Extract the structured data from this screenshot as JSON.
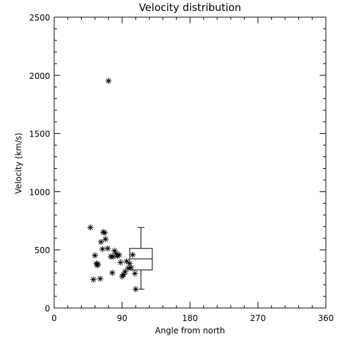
{
  "chart_data": {
    "type": "scatter",
    "title": "Velocity distribution",
    "xlabel": "Angle from north",
    "ylabel": "Velocity (km/s)",
    "xlim": [
      0,
      360
    ],
    "ylim": [
      0,
      2500
    ],
    "xticks": [
      0,
      90,
      180,
      270,
      360
    ],
    "xtick_labels": [
      "0",
      "90",
      "180",
      "270",
      "360"
    ],
    "yticks": [
      0,
      500,
      1000,
      1500,
      2000,
      2500
    ],
    "ytick_labels": [
      "0",
      "500",
      "1000",
      "1500",
      "2000",
      "2500"
    ],
    "grid": false,
    "legend": "none",
    "marker": "asterisk",
    "points": [
      {
        "x": 48,
        "y": 692
      },
      {
        "x": 52,
        "y": 245
      },
      {
        "x": 54,
        "y": 452
      },
      {
        "x": 56,
        "y": 382
      },
      {
        "x": 57,
        "y": 367
      },
      {
        "x": 58,
        "y": 377
      },
      {
        "x": 61,
        "y": 252
      },
      {
        "x": 62,
        "y": 568
      },
      {
        "x": 64,
        "y": 507
      },
      {
        "x": 65,
        "y": 652
      },
      {
        "x": 67,
        "y": 647
      },
      {
        "x": 68,
        "y": 592
      },
      {
        "x": 71,
        "y": 512
      },
      {
        "x": 72,
        "y": 1952
      },
      {
        "x": 75,
        "y": 442
      },
      {
        "x": 77,
        "y": 302
      },
      {
        "x": 78,
        "y": 442
      },
      {
        "x": 80,
        "y": 492
      },
      {
        "x": 82,
        "y": 467
      },
      {
        "x": 84,
        "y": 447
      },
      {
        "x": 86,
        "y": 457
      },
      {
        "x": 88,
        "y": 392
      },
      {
        "x": 90,
        "y": 272
      },
      {
        "x": 92,
        "y": 287
      },
      {
        "x": 94,
        "y": 312
      },
      {
        "x": 96,
        "y": 402
      },
      {
        "x": 98,
        "y": 342
      },
      {
        "x": 100,
        "y": 382
      },
      {
        "x": 102,
        "y": 347
      },
      {
        "x": 104,
        "y": 457
      },
      {
        "x": 107,
        "y": 297
      },
      {
        "x": 108,
        "y": 162
      }
    ],
    "boxplot": {
      "x_from": 100,
      "x_to": 130,
      "min": 162,
      "q1": 327,
      "median": 422,
      "q3": 512,
      "max": 692
    }
  }
}
